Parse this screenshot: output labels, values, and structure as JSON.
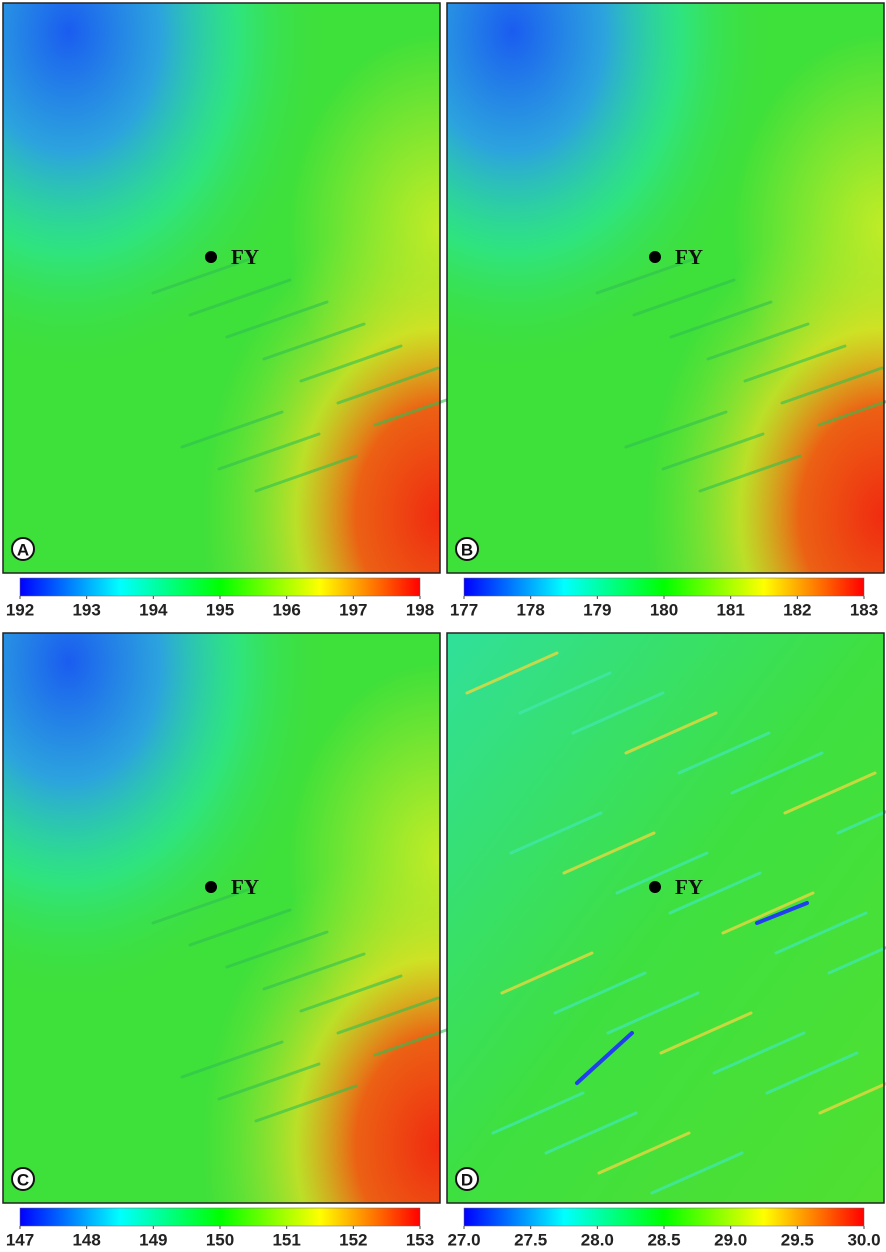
{
  "chart_data": [
    {
      "type": "heatmap",
      "panel_label": "A",
      "annotation": "FY",
      "colors": [
        "#0000ff",
        "#00ffff",
        "#00ff00",
        "#ffff00",
        "#ff0000"
      ],
      "clim": [
        192,
        198
      ],
      "cticks": [
        192,
        193,
        194,
        195,
        196,
        197,
        198
      ]
    },
    {
      "type": "heatmap",
      "panel_label": "B",
      "annotation": "FY",
      "colors": [
        "#0000ff",
        "#00ffff",
        "#00ff00",
        "#ffff00",
        "#ff0000"
      ],
      "clim": [
        177,
        183
      ],
      "cticks": [
        177,
        178,
        179,
        180,
        181,
        182,
        183
      ]
    },
    {
      "type": "heatmap",
      "panel_label": "C",
      "annotation": "FY",
      "colors": [
        "#0000ff",
        "#00ffff",
        "#00ff00",
        "#ffff00",
        "#ff0000"
      ],
      "clim": [
        147,
        153
      ],
      "cticks": [
        147,
        148,
        149,
        150,
        151,
        152,
        153
      ]
    },
    {
      "type": "heatmap",
      "panel_label": "D",
      "annotation": "FY",
      "colors": [
        "#0000ff",
        "#00ffff",
        "#00ff00",
        "#ffff00",
        "#ff0000"
      ],
      "clim": [
        27,
        30
      ],
      "cticks": [
        {
          "value": 27,
          "label": "27.0"
        },
        27.5,
        {
          "value": 28,
          "label": "28.0"
        },
        28.5,
        {
          "value": 29,
          "label": "29.0"
        },
        29.5,
        {
          "value": 30,
          "label": "30.0"
        }
      ]
    }
  ]
}
